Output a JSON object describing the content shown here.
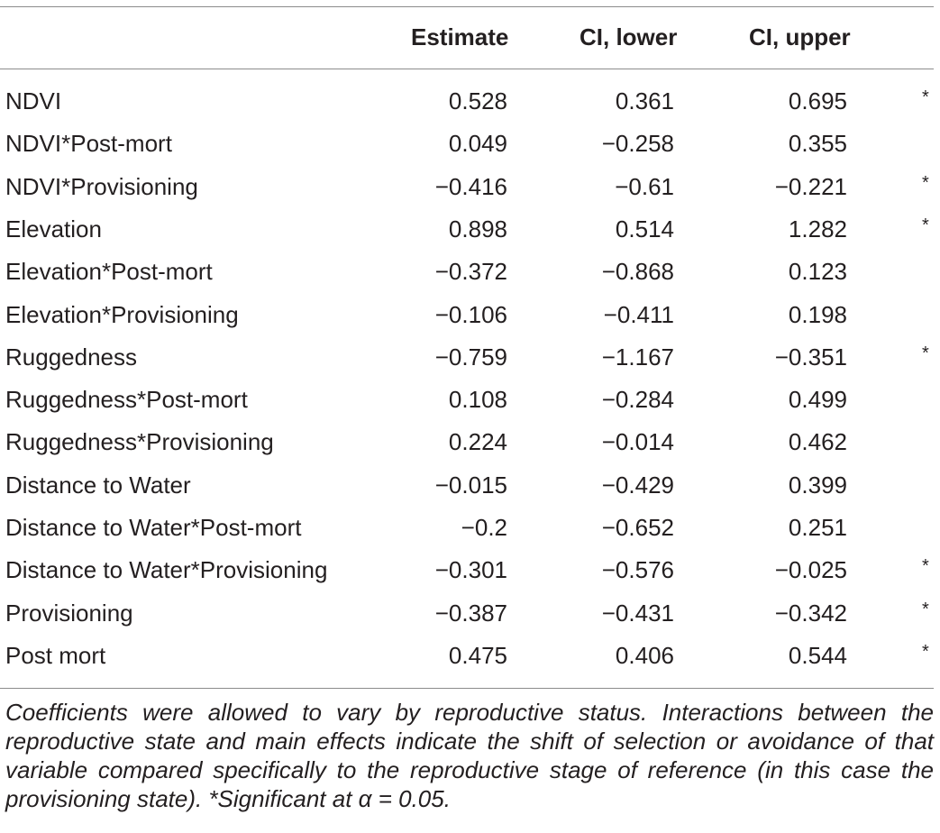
{
  "table": {
    "headers": {
      "label": "",
      "estimate": "Estimate",
      "ci_lower": "CI, lower",
      "ci_upper": "CI, upper"
    },
    "rows": [
      {
        "label": "NDVI",
        "estimate": "0.528",
        "ci_lower": "0.361",
        "ci_upper": "0.695",
        "sig": "*"
      },
      {
        "label": "NDVI*Post-mort",
        "estimate": "0.049",
        "ci_lower": "−0.258",
        "ci_upper": "0.355",
        "sig": ""
      },
      {
        "label": "NDVI*Provisioning",
        "estimate": "−0.416",
        "ci_lower": "−0.61",
        "ci_upper": "−0.221",
        "sig": "*"
      },
      {
        "label": "Elevation",
        "estimate": "0.898",
        "ci_lower": "0.514",
        "ci_upper": "1.282",
        "sig": "*"
      },
      {
        "label": "Elevation*Post-mort",
        "estimate": "−0.372",
        "ci_lower": "−0.868",
        "ci_upper": "0.123",
        "sig": ""
      },
      {
        "label": "Elevation*Provisioning",
        "estimate": "−0.106",
        "ci_lower": "−0.411",
        "ci_upper": "0.198",
        "sig": ""
      },
      {
        "label": "Ruggedness",
        "estimate": "−0.759",
        "ci_lower": "−1.167",
        "ci_upper": "−0.351",
        "sig": "*"
      },
      {
        "label": "Ruggedness*Post-mort",
        "estimate": "0.108",
        "ci_lower": "−0.284",
        "ci_upper": "0.499",
        "sig": ""
      },
      {
        "label": "Ruggedness*Provisioning",
        "estimate": "0.224",
        "ci_lower": "−0.014",
        "ci_upper": "0.462",
        "sig": ""
      },
      {
        "label": "Distance to Water",
        "estimate": "−0.015",
        "ci_lower": "−0.429",
        "ci_upper": "0.399",
        "sig": ""
      },
      {
        "label": "Distance to Water*Post-mort",
        "estimate": "−0.2",
        "ci_lower": "−0.652",
        "ci_upper": "0.251",
        "sig": ""
      },
      {
        "label": "Distance to Water*Provisioning",
        "estimate": "−0.301",
        "ci_lower": "−0.576",
        "ci_upper": "−0.025",
        "sig": "*"
      },
      {
        "label": "Provisioning",
        "estimate": "−0.387",
        "ci_lower": "−0.431",
        "ci_upper": "−0.342",
        "sig": "*"
      },
      {
        "label": "Post mort",
        "estimate": "0.475",
        "ci_lower": "0.406",
        "ci_upper": "0.544",
        "sig": "*"
      }
    ]
  },
  "footnote": "Coefficients were allowed to vary by reproductive status. Interactions between the reproductive state and main effects indicate the shift of selection or avoidance of that variable compared specifically to the reproductive stage of reference (in this case the provisioning state). *Significant at α = 0.05."
}
